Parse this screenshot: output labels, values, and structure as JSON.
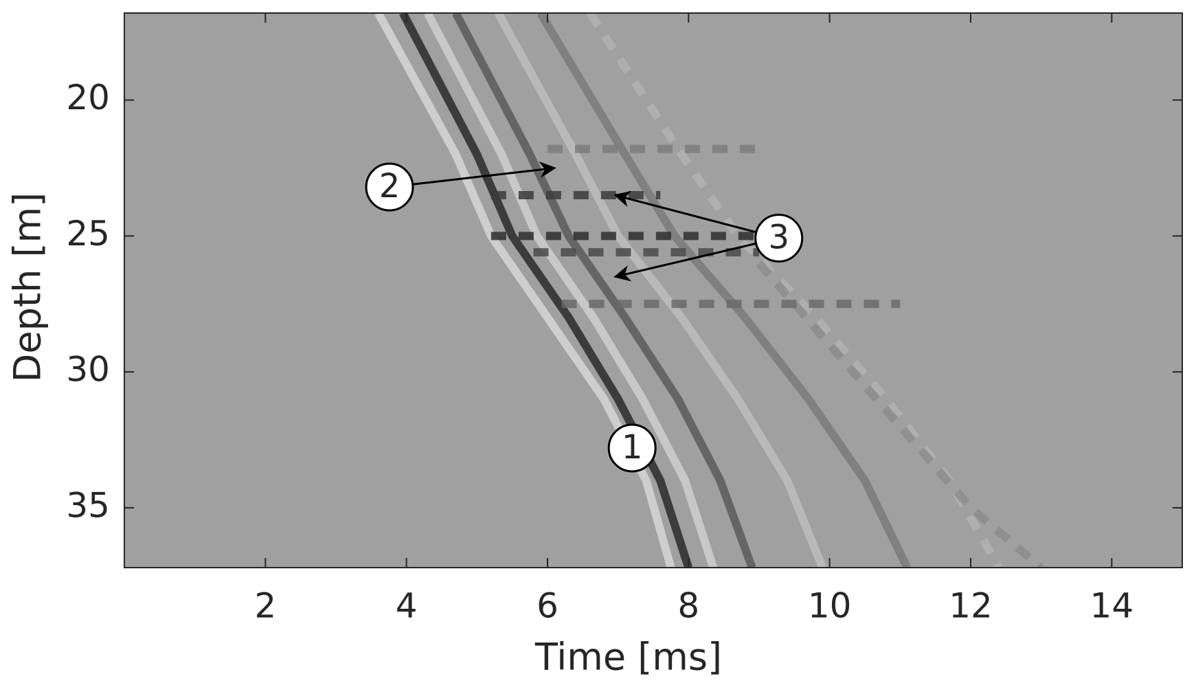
{
  "chart_data": {
    "type": "line",
    "xlabel": "Time [ms]",
    "ylabel": "Depth [m]",
    "xlim": [
      0,
      15
    ],
    "ylim": [
      16.8,
      37.2
    ],
    "y_reversed": true,
    "xticks": [
      2,
      4,
      6,
      8,
      10,
      12,
      14
    ],
    "yticks": [
      20,
      25,
      30,
      35
    ],
    "background": "#a0a0a0",
    "series": [
      {
        "color": "#d6d6d6",
        "dash": false,
        "x": [
          3.6,
          4.7,
          5.2,
          6.0,
          6.8,
          7.4,
          7.75
        ],
        "values": [
          16.8,
          22,
          25,
          28,
          31,
          34,
          37.2
        ]
      },
      {
        "color": "#2a2a2a",
        "dash": false,
        "x": [
          3.95,
          5.0,
          5.5,
          6.3,
          7.0,
          7.6,
          8.0
        ],
        "values": [
          16.8,
          22,
          25,
          28,
          31,
          34,
          37.2
        ]
      },
      {
        "color": "#cfcfcf",
        "dash": false,
        "x": [
          4.3,
          5.35,
          5.85,
          6.65,
          7.35,
          7.95,
          8.35
        ],
        "values": [
          16.8,
          22,
          25,
          28,
          31,
          34,
          37.2
        ]
      },
      {
        "color": "#5a5a5a",
        "dash": false,
        "x": [
          4.7,
          5.75,
          6.3,
          7.1,
          7.85,
          8.45,
          8.9
        ],
        "values": [
          16.8,
          22,
          25,
          28,
          31,
          34,
          37.2
        ]
      },
      {
        "color": "#bdbdbd",
        "dash": false,
        "x": [
          5.3,
          6.4,
          7.0,
          7.9,
          8.7,
          9.4,
          9.9
        ],
        "values": [
          16.8,
          22,
          25,
          28,
          31,
          34,
          37.2
        ]
      },
      {
        "color": "#7a7a7a",
        "dash": false,
        "x": [
          5.9,
          7.1,
          7.8,
          8.8,
          9.7,
          10.5,
          11.1
        ],
        "values": [
          16.8,
          22,
          25,
          28,
          31,
          34,
          37.2
        ]
      },
      {
        "color": "#b2b2b2",
        "dash": true,
        "x": [
          6.6,
          7.9,
          8.7,
          9.8,
          10.8,
          11.7,
          12.4
        ],
        "values": [
          16.8,
          22,
          25,
          28,
          31,
          34,
          37.2
        ]
      },
      {
        "color": "#8c8c8c",
        "dash": true,
        "x": [
          9.0,
          10.0,
          11.0,
          12.0,
          13.0
        ],
        "values": [
          26,
          29,
          32,
          35,
          37.2
        ]
      },
      {
        "color": "#3c3c3c",
        "dash": true,
        "x": [
          5.2,
          7.6
        ],
        "values": [
          23.5,
          23.5
        ]
      },
      {
        "color": "#2e2e2e",
        "dash": true,
        "x": [
          5.2,
          9.4
        ],
        "values": [
          25.0,
          25.0
        ]
      },
      {
        "color": "#4a4a4a",
        "dash": true,
        "x": [
          5.8,
          9.0
        ],
        "values": [
          25.6,
          25.6
        ]
      },
      {
        "color": "#6a6a6a",
        "dash": true,
        "x": [
          6.2,
          11.0
        ],
        "values": [
          27.5,
          27.5
        ]
      },
      {
        "color": "#7c7c7c",
        "dash": true,
        "x": [
          6.0,
          9.0
        ],
        "values": [
          21.8,
          21.8
        ]
      }
    ],
    "annotations": [
      {
        "text": "1",
        "x": 7.2,
        "y": 32.8,
        "arrows": []
      },
      {
        "text": "2",
        "x": 3.76,
        "y": 23.2,
        "arrows": [
          {
            "x": 6.1,
            "y": 22.5
          }
        ]
      },
      {
        "text": "3",
        "x": 9.28,
        "y": 25.08,
        "arrows": [
          {
            "x": 6.96,
            "y": 23.5
          },
          {
            "x": 6.96,
            "y": 26.5
          }
        ]
      }
    ]
  }
}
